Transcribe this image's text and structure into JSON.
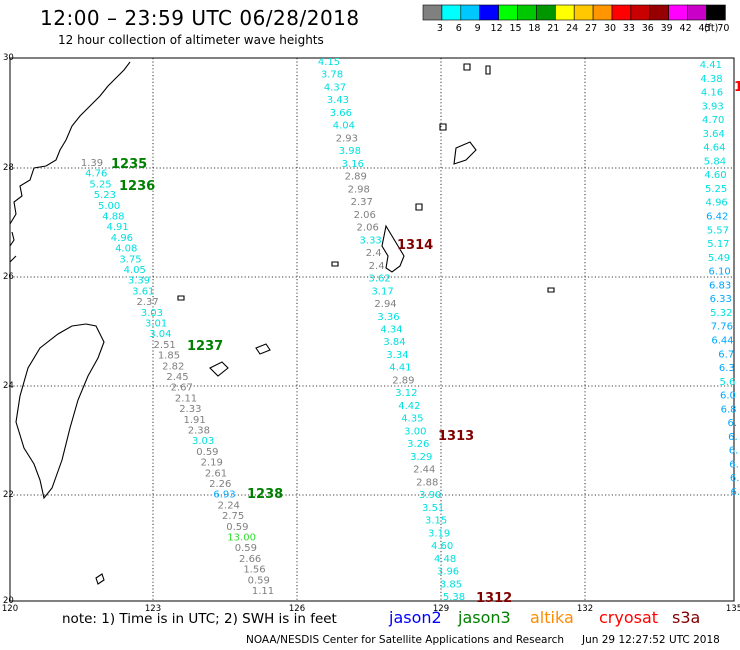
{
  "header": {
    "title": "12:00 – 23:59 UTC 06/28/2018",
    "subtitle": "12 hour collection of altimeter wave heights"
  },
  "legend": {
    "unit": "(ft)",
    "bins": [
      {
        "label": "3",
        "color": "#808080"
      },
      {
        "label": "6",
        "color": "#00ffff"
      },
      {
        "label": "9",
        "color": "#00c8ff"
      },
      {
        "label": "12",
        "color": "#0000ff"
      },
      {
        "label": "15",
        "color": "#00ff00"
      },
      {
        "label": "18",
        "color": "#00c800"
      },
      {
        "label": "21",
        "color": "#009600"
      },
      {
        "label": "24",
        "color": "#ffff00"
      },
      {
        "label": "27",
        "color": "#ffc800"
      },
      {
        "label": "30",
        "color": "#ff9600"
      },
      {
        "label": "33",
        "color": "#ff0000"
      },
      {
        "label": "36",
        "color": "#c80000"
      },
      {
        "label": "39",
        "color": "#960000"
      },
      {
        "label": "42",
        "color": "#ff00ff"
      },
      {
        "label": "45",
        "color": "#c800c8"
      },
      {
        "label": "70",
        "color": "#000000"
      }
    ]
  },
  "axes": {
    "lat_labels": [
      "30",
      "28",
      "26",
      "24",
      "22",
      "20"
    ],
    "lon_labels": [
      "120",
      "123",
      "126",
      "129",
      "132",
      "135"
    ]
  },
  "track_labels": [
    {
      "text": "1235",
      "color": "#008000"
    },
    {
      "text": "1236",
      "color": "#008000"
    },
    {
      "text": "1237",
      "color": "#008000"
    },
    {
      "text": "1238",
      "color": "#008000"
    },
    {
      "text": "1314",
      "color": "#800000"
    },
    {
      "text": "1313",
      "color": "#800000"
    },
    {
      "text": "1312",
      "color": "#800000"
    },
    {
      "text": "1",
      "color": "#ff0000"
    }
  ],
  "tracks": {
    "track_1235": [
      "1.39",
      "4.76",
      "5.25",
      "5.23",
      "5.00",
      "4.88",
      "4.91",
      "4.96",
      "4.08",
      "3.75",
      "4.05",
      "3.39",
      "3.61",
      "2.37",
      "3.03",
      "3.01",
      "3.04",
      "2.51",
      "1.85",
      "2.82",
      "2.45",
      "2.67",
      "2.11",
      "2.33",
      "1.91",
      "2.38",
      "3.03",
      "0.59",
      "2.19",
      "2.61",
      "2.26",
      "6.93",
      "2.24",
      "2.75",
      "0.59",
      "13.00",
      "0.59",
      "2.66",
      "1.56",
      "0.59",
      "1.11"
    ],
    "track_1314": [
      "4.15",
      "3.78",
      "4.37",
      "3.43",
      "3.66",
      "4.04",
      "2.93",
      "3.98",
      "3.16",
      "2.89",
      "2.98",
      "2.37",
      "2.06",
      "2.06",
      "3.33",
      "2.4",
      "2.4",
      "3.62",
      "3.17",
      "2.94",
      "3.36",
      "4.34",
      "3.84",
      "3.34",
      "4.41",
      "2.89",
      "3.12",
      "4.42",
      "4.35",
      "3.00",
      "3.26",
      "3.29",
      "2.44",
      "2.88",
      "3.90",
      "3.51",
      "3.15",
      "3.19",
      "4.60",
      "4.48",
      "3.96",
      "3.85",
      "5.38"
    ],
    "track_east": [
      "4.41",
      "4.38",
      "4.16",
      "3.93",
      "4.70",
      "3.64",
      "4.64",
      "5.84",
      "4.60",
      "5.25",
      "4.96",
      "6.42",
      "5.57",
      "5.17",
      "5.49",
      "6.10",
      "6.83",
      "6.33",
      "5.32",
      "7.76",
      "6.44",
      "6.7",
      "6.3",
      "5.6",
      "6.0",
      "6.8",
      "6.",
      "6.",
      "6.",
      "6.",
      "6.",
      "6."
    ]
  },
  "footer": {
    "note": "note: 1) Time is in UTC; 2) SWH is in feet",
    "credit": "NOAA/NESDIS Center for Satellite Applications and Research",
    "timestamp": "Jun 29 12:27:52 UTC 2018",
    "satellites": [
      {
        "name": "jason2",
        "color": "#0000ff"
      },
      {
        "name": "jason3",
        "color": "#008000"
      },
      {
        "name": "altika",
        "color": "#ff8c00"
      },
      {
        "name": "cryosat",
        "color": "#ff0000"
      },
      {
        "name": "s3a",
        "color": "#800000"
      }
    ]
  }
}
